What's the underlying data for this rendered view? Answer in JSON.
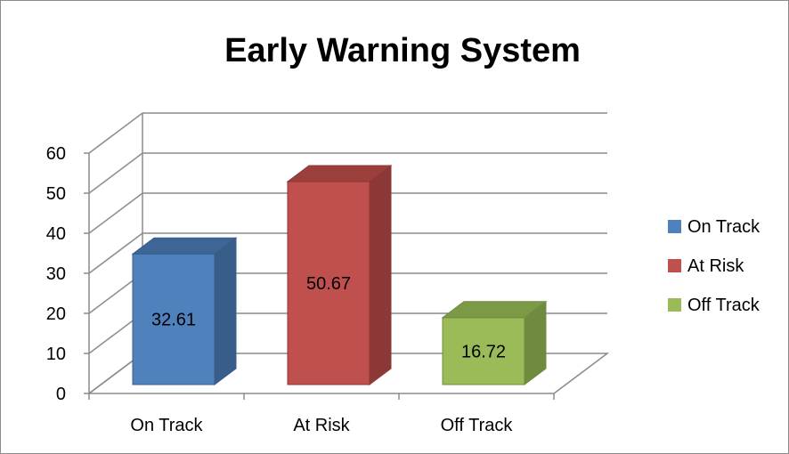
{
  "chart_data": {
    "type": "bar",
    "title": "Early Warning System",
    "categories": [
      "On Track",
      "At Risk",
      "Off Track"
    ],
    "values": [
      32.61,
      50.67,
      16.72
    ],
    "data_labels": [
      "32.61",
      "50.67",
      "16.72"
    ],
    "colors": [
      "#4f81bd",
      "#c0504d",
      "#9bbb59"
    ],
    "colors_top": [
      "#3d6696",
      "#9c3e3c",
      "#7c9a46"
    ],
    "colors_side": [
      "#385d89",
      "#8c3836",
      "#708b3f"
    ],
    "ylim": [
      0,
      60
    ],
    "yticks": [
      0,
      10,
      20,
      30,
      40,
      50,
      60
    ],
    "grid": true,
    "style": "3d-column",
    "legend": {
      "position": "right",
      "entries": [
        "On Track",
        "At Risk",
        "Off Track"
      ]
    }
  }
}
